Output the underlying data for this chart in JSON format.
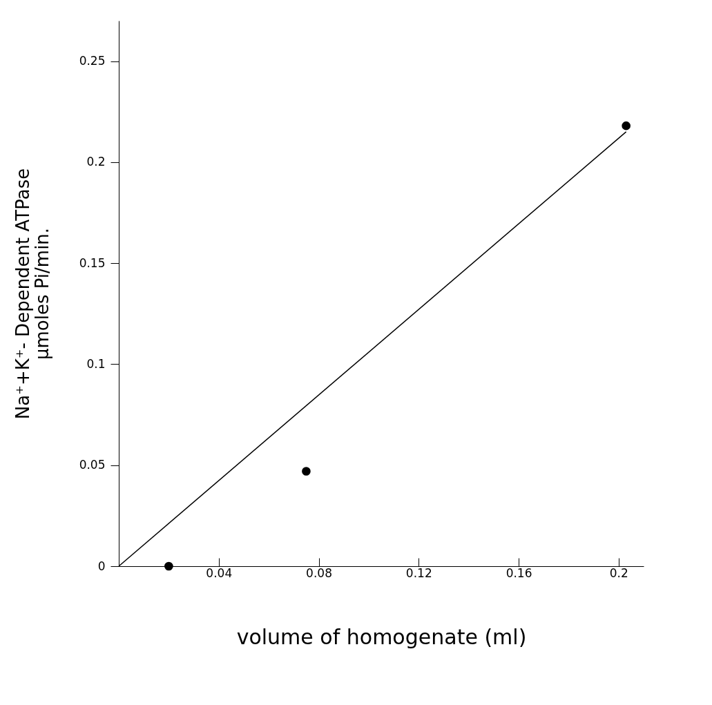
{
  "chart_data": {
    "type": "scatter",
    "xlabel": "volume of homogenate (ml)",
    "ylabel": "Na⁺+K⁺- Dependent ATPase\nμmoles  Pi/min.",
    "xlim": [
      0,
      0.21
    ],
    "ylim": [
      0,
      0.27
    ],
    "xticks": [
      0.04,
      0.08,
      0.12,
      0.16,
      0.2
    ],
    "yticks": [
      0,
      0.05,
      0.1,
      0.15,
      0.2,
      0.25
    ],
    "grid": false,
    "marker": "circle",
    "series": [
      {
        "type": "scatter",
        "color": "#000000",
        "x": [
          0.02,
          0.075,
          0.203
        ],
        "values": [
          0,
          0.047,
          0.218
        ]
      },
      {
        "type": "line",
        "color": "#000000",
        "marker": "none",
        "line_style": "solid",
        "x": [
          0,
          0.203
        ],
        "values": [
          0,
          0.215
        ]
      }
    ]
  }
}
